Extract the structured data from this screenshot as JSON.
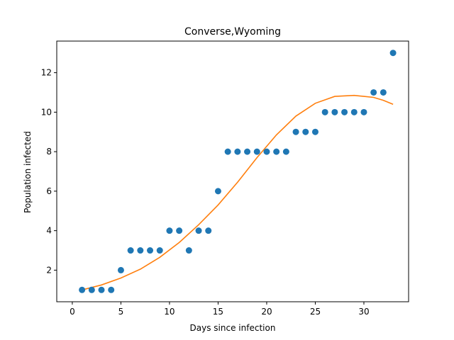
{
  "chart_data": {
    "type": "scatter",
    "title": "Converse,Wyoming",
    "xlabel": "Days since infection",
    "ylabel": "Population infected",
    "xlim": [
      -1.6,
      34.6
    ],
    "ylim": [
      0.4,
      13.6
    ],
    "xticks": [
      0,
      5,
      10,
      15,
      20,
      25,
      30
    ],
    "yticks": [
      2,
      4,
      6,
      8,
      10,
      12
    ],
    "grid": false,
    "series": [
      {
        "kind": "scatter",
        "color": "#1f77b4",
        "x": [
          1,
          2,
          3,
          4,
          5,
          6,
          7,
          8,
          9,
          10,
          11,
          12,
          13,
          14,
          15,
          16,
          17,
          18,
          19,
          20,
          21,
          22,
          23,
          24,
          25,
          26,
          27,
          28,
          29,
          30,
          31,
          32,
          33
        ],
        "y": [
          1,
          1,
          1,
          1,
          2,
          3,
          3,
          3,
          3,
          4,
          4,
          3,
          4,
          4,
          6,
          8,
          8,
          8,
          8,
          8,
          8,
          8,
          9,
          9,
          9,
          10,
          10,
          10,
          10,
          10,
          11,
          11,
          13
        ]
      },
      {
        "kind": "line",
        "color": "#ff7f0e",
        "x": [
          1,
          3,
          5,
          7,
          9,
          11,
          13,
          15,
          17,
          19,
          21,
          23,
          25,
          27,
          29,
          30,
          31,
          32,
          33
        ],
        "y": [
          1.0,
          1.25,
          1.6,
          2.05,
          2.65,
          3.4,
          4.3,
          5.3,
          6.45,
          7.7,
          8.85,
          9.8,
          10.45,
          10.8,
          10.85,
          10.8,
          10.75,
          10.6,
          10.4
        ]
      }
    ]
  }
}
